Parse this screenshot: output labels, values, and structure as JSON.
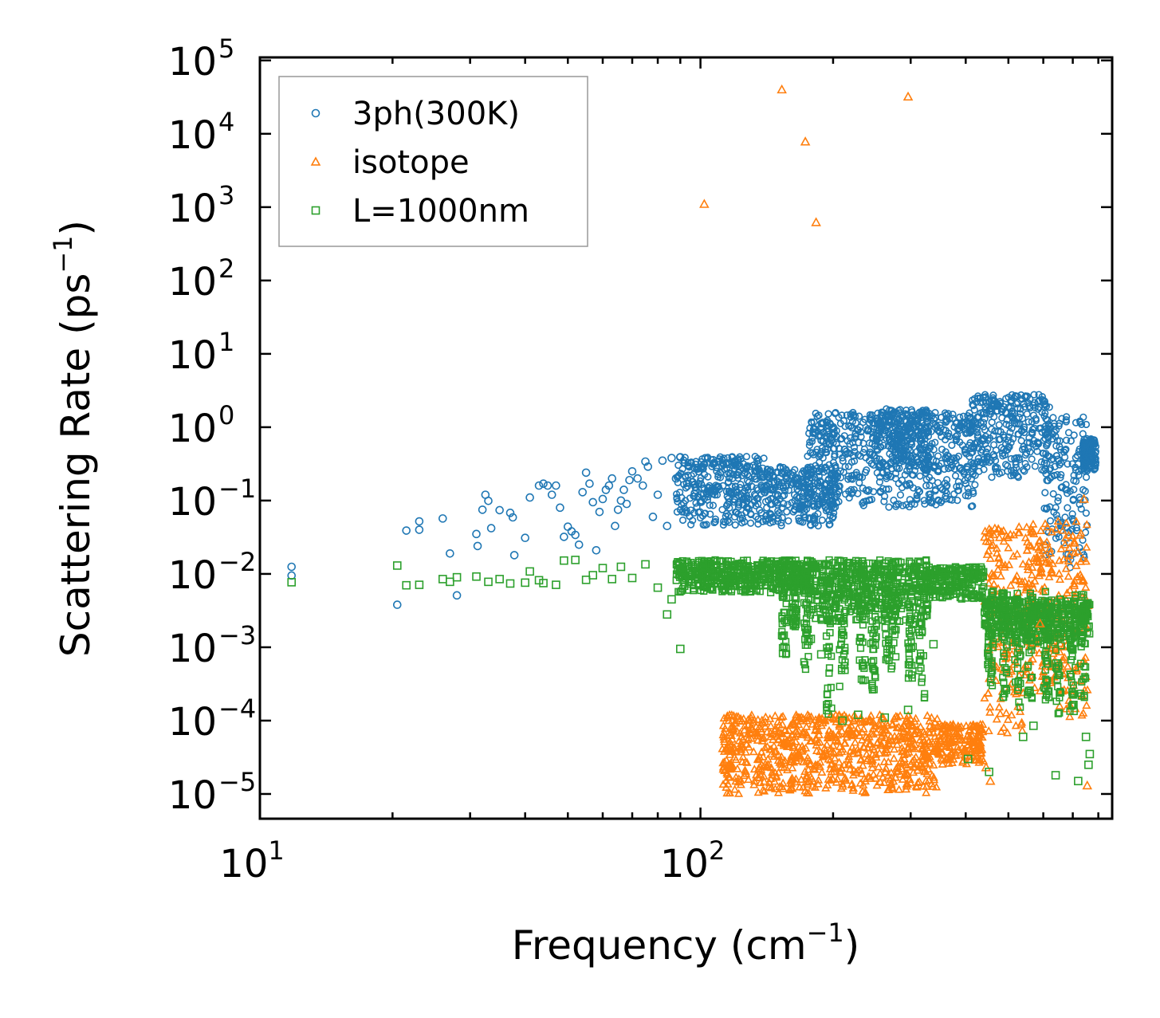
{
  "chart_data": {
    "type": "scatter",
    "title": "",
    "xlabel": "Frequency (cm",
    "xlabel_sup": "−1",
    "xlabel_end": ")",
    "ylabel": "Scattering Rate (ps",
    "ylabel_sup": "−1",
    "ylabel_end": ")",
    "xscale": "log",
    "yscale": "log",
    "xlim": [
      10,
      860
    ],
    "ylim": [
      4.6e-06,
      110000.0
    ],
    "x_ticks": [
      {
        "value": 10,
        "base": "10",
        "exp": "1"
      },
      {
        "value": 100,
        "base": "10",
        "exp": "2"
      }
    ],
    "y_ticks": [
      {
        "value": 100000.0,
        "base": "10",
        "exp": "5"
      },
      {
        "value": 10000.0,
        "base": "10",
        "exp": "4"
      },
      {
        "value": 1000.0,
        "base": "10",
        "exp": "3"
      },
      {
        "value": 100.0,
        "base": "10",
        "exp": "2"
      },
      {
        "value": 10.0,
        "base": "10",
        "exp": "1"
      },
      {
        "value": 1.0,
        "base": "10",
        "exp": "0"
      },
      {
        "value": 0.1,
        "base": "10",
        "exp": "−1"
      },
      {
        "value": 0.01,
        "base": "10",
        "exp": "−2"
      },
      {
        "value": 0.001,
        "base": "10",
        "exp": "−3"
      },
      {
        "value": 0.0001,
        "base": "10",
        "exp": "−4"
      },
      {
        "value": 1e-05,
        "base": "10",
        "exp": "−5"
      }
    ],
    "legend_position": "top-left",
    "series": [
      {
        "name": "3ph(300K)",
        "marker": "circle",
        "color": "#1f77b4",
        "points": [
          [
            11.8,
            0.0125
          ],
          [
            11.8,
            0.0095
          ],
          [
            20.5,
            0.0038
          ],
          [
            21.5,
            0.039
          ],
          [
            23,
            0.052
          ],
          [
            23,
            0.04
          ],
          [
            26,
            0.057
          ],
          [
            27,
            0.019
          ],
          [
            28,
            0.0051
          ],
          [
            31,
            0.035
          ],
          [
            31.2,
            0.024
          ],
          [
            32,
            0.075
          ],
          [
            32.5,
            0.12
          ],
          [
            33,
            0.099
          ],
          [
            33.5,
            0.042
          ],
          [
            35,
            0.074
          ],
          [
            37,
            0.068
          ],
          [
            37.5,
            0.059
          ],
          [
            37.8,
            0.018
          ],
          [
            40,
            0.031
          ],
          [
            41,
            0.11
          ],
          [
            43,
            0.16
          ],
          [
            44,
            0.17
          ],
          [
            45,
            0.16
          ],
          [
            46,
            0.12
          ],
          [
            47,
            0.16
          ],
          [
            48,
            0.08
          ],
          [
            49,
            0.032
          ],
          [
            50,
            0.044
          ],
          [
            51,
            0.038
          ],
          [
            52,
            0.034
          ],
          [
            53,
            0.025
          ],
          [
            54,
            0.13
          ],
          [
            55,
            0.24
          ],
          [
            56,
            0.17
          ],
          [
            57,
            0.095
          ],
          [
            58,
            0.021
          ],
          [
            59,
            0.07
          ],
          [
            60,
            0.105
          ],
          [
            61,
            0.14
          ],
          [
            62,
            0.16
          ],
          [
            63,
            0.2
          ],
          [
            64,
            0.045
          ],
          [
            65,
            0.075
          ],
          [
            66,
            0.1
          ],
          [
            67,
            0.14
          ],
          [
            68,
            0.09
          ],
          [
            69,
            0.19
          ],
          [
            70,
            0.25
          ],
          [
            72,
            0.2
          ],
          [
            74,
            0.16
          ],
          [
            75,
            0.34
          ],
          [
            76,
            0.29
          ],
          [
            78,
            0.06
          ],
          [
            80,
            0.12
          ],
          [
            82,
            0.35
          ],
          [
            84,
            0.045
          ],
          [
            86,
            0.38
          ],
          [
            88,
            0.2
          ],
          [
            90,
            0.39
          ]
        ],
        "bands": [
          {
            "x": [
              88,
              140
            ],
            "y_low": 0.045,
            "y_high": 0.4
          },
          {
            "x": [
              140,
              205
            ],
            "y_low": 0.045,
            "y_high": 0.3
          },
          {
            "x": [
              175,
              420
            ],
            "y_low": 0.08,
            "y_high": 1.6
          },
          {
            "x": [
              250,
              330
            ],
            "y_low": 0.25,
            "y_high": 1.8
          },
          {
            "x": [
              410,
              620
            ],
            "y_low": 0.2,
            "y_high": 2.8
          },
          {
            "x": [
              600,
              755
            ],
            "y_low": 0.012,
            "y_high": 1.4
          },
          {
            "x": [
              740,
              790
            ],
            "y_low": 0.25,
            "y_high": 0.7
          }
        ]
      },
      {
        "name": "isotope",
        "marker": "triangle",
        "color": "#ff7f0e",
        "points": [
          [
            102,
            1100
          ],
          [
            153,
            40000
          ],
          [
            173,
            7800
          ],
          [
            183,
            620
          ],
          [
            296,
            32000
          ],
          [
            742,
            0.105
          ],
          [
            755,
            1.3e-05
          ],
          [
            455,
            1.5e-05
          ],
          [
            445,
            2.3e-05
          ],
          [
            590,
            0.0021
          ]
        ],
        "bands": [
          {
            "x": [
              112,
              345
            ],
            "y_low": 1e-05,
            "y_high": 0.00012
          },
          {
            "x": [
              345,
              440
            ],
            "y_low": 2.5e-05,
            "y_high": 9e-05
          },
          {
            "x": [
              440,
              545
            ],
            "y_low": 6e-05,
            "y_high": 0.045
          },
          {
            "x": [
              545,
              620
            ],
            "y_low": 0.0002,
            "y_high": 0.05
          },
          {
            "x": [
              620,
              760
            ],
            "y_low": 0.0001,
            "y_high": 0.055
          }
        ]
      },
      {
        "name": "L=1000nm",
        "marker": "square",
        "color": "#2ca02c",
        "points": [
          [
            11.8,
            0.0077
          ],
          [
            20.5,
            0.013
          ],
          [
            21.5,
            0.007
          ],
          [
            23,
            0.0071
          ],
          [
            26,
            0.0085
          ],
          [
            27,
            0.0078
          ],
          [
            28,
            0.009
          ],
          [
            31,
            0.0092
          ],
          [
            33,
            0.0078
          ],
          [
            35,
            0.0085
          ],
          [
            37,
            0.0074
          ],
          [
            40,
            0.0076
          ],
          [
            41,
            0.0108
          ],
          [
            43,
            0.0082
          ],
          [
            44,
            0.0075
          ],
          [
            47,
            0.0071
          ],
          [
            49,
            0.0152
          ],
          [
            52,
            0.0155
          ],
          [
            55,
            0.0083
          ],
          [
            57,
            0.0096
          ],
          [
            60,
            0.012
          ],
          [
            63,
            0.0085
          ],
          [
            66,
            0.0125
          ],
          [
            70,
            0.0088
          ],
          [
            75,
            0.0135
          ],
          [
            80,
            0.0065
          ],
          [
            84,
            0.0028
          ],
          [
            86,
            0.0045
          ],
          [
            90,
            0.00095
          ],
          [
            178,
            0.0013
          ],
          [
            188,
            0.0008
          ],
          [
            210,
            0.0001
          ],
          [
            228,
            0.00012
          ],
          [
            262,
            0.00011
          ],
          [
            296,
            0.00014
          ],
          [
            338,
            0.0011
          ],
          [
            405,
            3e-05
          ],
          [
            452,
            2e-05
          ],
          [
            540,
            6e-05
          ],
          [
            570,
            8.5e-05
          ],
          [
            640,
            1.8e-05
          ],
          [
            720,
            1.5e-05
          ],
          [
            750,
            6e-05
          ],
          [
            760,
            2.5e-05
          ],
          [
            765,
            3.5e-05
          ]
        ],
        "bands": [
          {
            "x": [
              88,
              175
            ],
            "y_low": 0.0055,
            "y_high": 0.0155
          },
          {
            "x": [
              175,
              330
            ],
            "y_low": 0.0022,
            "y_high": 0.0155
          },
          {
            "x": [
              330,
              440
            ],
            "y_low": 0.0045,
            "y_high": 0.0125
          },
          {
            "x": [
              440,
              765
            ],
            "y_low": 0.0011,
            "y_high": 0.0045
          }
        ],
        "spikes": [
          {
            "x": 155,
            "y_low": 0.0008,
            "y_high": 0.012
          },
          {
            "x": 163,
            "y_low": 0.0019,
            "y_high": 0.012
          },
          {
            "x": 174,
            "y_low": 0.0005,
            "y_high": 0.012
          },
          {
            "x": 196,
            "y_low": 0.00012,
            "y_high": 0.012
          },
          {
            "x": 210,
            "y_low": 0.00022,
            "y_high": 0.012
          },
          {
            "x": 233,
            "y_low": 0.00035,
            "y_high": 0.012
          },
          {
            "x": 247,
            "y_low": 0.00026,
            "y_high": 0.012
          },
          {
            "x": 265,
            "y_low": 0.0006,
            "y_high": 0.012
          },
          {
            "x": 275,
            "y_low": 0.0004,
            "y_high": 0.012
          },
          {
            "x": 300,
            "y_low": 0.00035,
            "y_high": 0.012
          },
          {
            "x": 318,
            "y_low": 0.0002,
            "y_high": 0.012
          },
          {
            "x": 455,
            "y_low": 0.0003,
            "y_high": 0.006
          },
          {
            "x": 490,
            "y_low": 0.0002,
            "y_high": 0.006
          },
          {
            "x": 525,
            "y_low": 0.00015,
            "y_high": 0.006
          },
          {
            "x": 560,
            "y_low": 0.0002,
            "y_high": 0.006
          },
          {
            "x": 610,
            "y_low": 0.00015,
            "y_high": 0.006
          },
          {
            "x": 650,
            "y_low": 0.0001,
            "y_high": 0.006
          },
          {
            "x": 700,
            "y_low": 0.0001,
            "y_high": 0.006
          },
          {
            "x": 740,
            "y_low": 0.0002,
            "y_high": 0.006
          }
        ]
      }
    ]
  }
}
